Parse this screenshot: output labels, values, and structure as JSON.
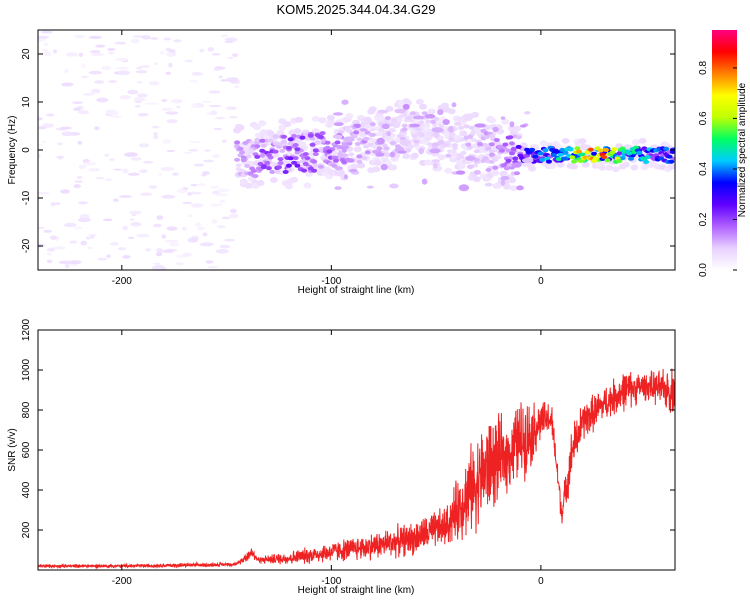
{
  "title": "KOM5.2025.344.04.34.G29",
  "chart_data": [
    {
      "type": "heatmap",
      "name": "spectrogram",
      "xlabel": "Height of straight line (km)",
      "ylabel": "Frequency (Hz)",
      "xlim": [
        -240,
        64
      ],
      "ylim": [
        -25,
        25
      ],
      "xticks": [
        -200,
        -100,
        0
      ],
      "yticks": [
        -20,
        -10,
        0,
        10,
        20
      ],
      "colorbar": {
        "label": "Normalized spectral amplitude",
        "range": [
          0,
          0.95
        ],
        "ticks": [
          0.0,
          0.2,
          0.4,
          0.6,
          0.8
        ],
        "colors": [
          "#ffffff",
          "#e8d0ff",
          "#b060ff",
          "#6000ff",
          "#0000ff",
          "#00ccff",
          "#00ff60",
          "#c0ff00",
          "#ffff00",
          "#ff8000",
          "#ff0000",
          "#ff0080"
        ]
      },
      "features": [
        {
          "desc": "sparse noise",
          "x_range": [
            -240,
            -145
          ],
          "freq_range": [
            -25,
            25
          ],
          "amplitude": 0.03
        },
        {
          "desc": "main band",
          "points": [
            {
              "x": -145,
              "f": -2,
              "a": 0.15
            },
            {
              "x": -125,
              "f": -1,
              "a": 0.25
            },
            {
              "x": -100,
              "f": 0,
              "a": 0.2
            },
            {
              "x": -80,
              "f": 2,
              "a": 0.12
            },
            {
              "x": -60,
              "f": 4,
              "a": 0.1
            },
            {
              "x": -40,
              "f": 2,
              "a": 0.1
            },
            {
              "x": -20,
              "f": -1,
              "a": 0.15
            },
            {
              "x": -5,
              "f": -1,
              "a": 0.35
            },
            {
              "x": 10,
              "f": -1,
              "a": 0.5
            },
            {
              "x": 25,
              "f": -1,
              "a": 0.9
            },
            {
              "x": 45,
              "f": -1,
              "a": 0.5
            },
            {
              "x": 64,
              "f": -1,
              "a": 0.4
            }
          ]
        }
      ]
    },
    {
      "type": "line",
      "name": "snr",
      "xlabel": "Height of straight line (km)",
      "ylabel": "SNR (v/v)",
      "xlim": [
        -240,
        64
      ],
      "ylim": [
        0,
        1200
      ],
      "xticks": [
        -200,
        -100,
        0
      ],
      "yticks": [
        200,
        400,
        600,
        800,
        1000,
        1200
      ],
      "color": "#ee2222",
      "envelope": {
        "x": [
          -240,
          -200,
          -160,
          -145,
          -138,
          -135,
          -120,
          -100,
          -80,
          -60,
          -45,
          -35,
          -25,
          -15,
          -10,
          -5,
          0,
          5,
          10,
          15,
          20,
          30,
          40,
          50,
          60,
          64
        ],
        "mean": [
          20,
          20,
          25,
          30,
          90,
          50,
          60,
          90,
          120,
          160,
          220,
          380,
          520,
          580,
          650,
          680,
          740,
          760,
          280,
          600,
          740,
          830,
          900,
          920,
          900,
          900
        ],
        "spread": [
          10,
          10,
          12,
          10,
          40,
          20,
          40,
          60,
          80,
          100,
          120,
          250,
          300,
          200,
          250,
          200,
          120,
          100,
          80,
          150,
          120,
          100,
          120,
          80,
          120,
          150
        ]
      }
    }
  ]
}
